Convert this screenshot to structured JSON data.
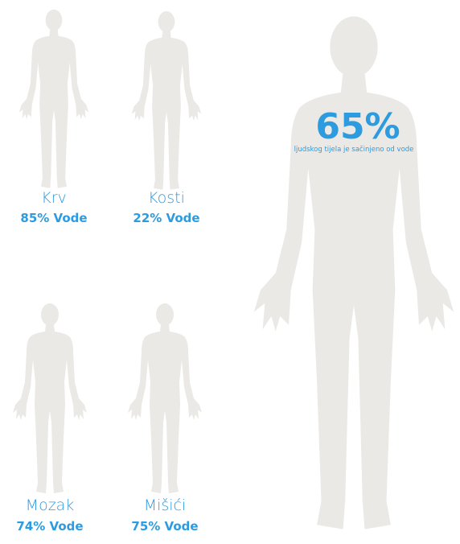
{
  "figures": [
    {
      "name": "Krv",
      "value": 85,
      "label": "85% Vode"
    },
    {
      "name": "Kosti",
      "value": 22,
      "label": "22% Vode"
    },
    {
      "name": "Mozak",
      "value": 74,
      "label": "74% Vode"
    },
    {
      "name": "Mišići",
      "value": 75,
      "label": "75% Vode"
    }
  ],
  "main": {
    "value": 65,
    "label": "65%",
    "caption": "ljudskog tijela je sačinjeno od vode"
  }
}
